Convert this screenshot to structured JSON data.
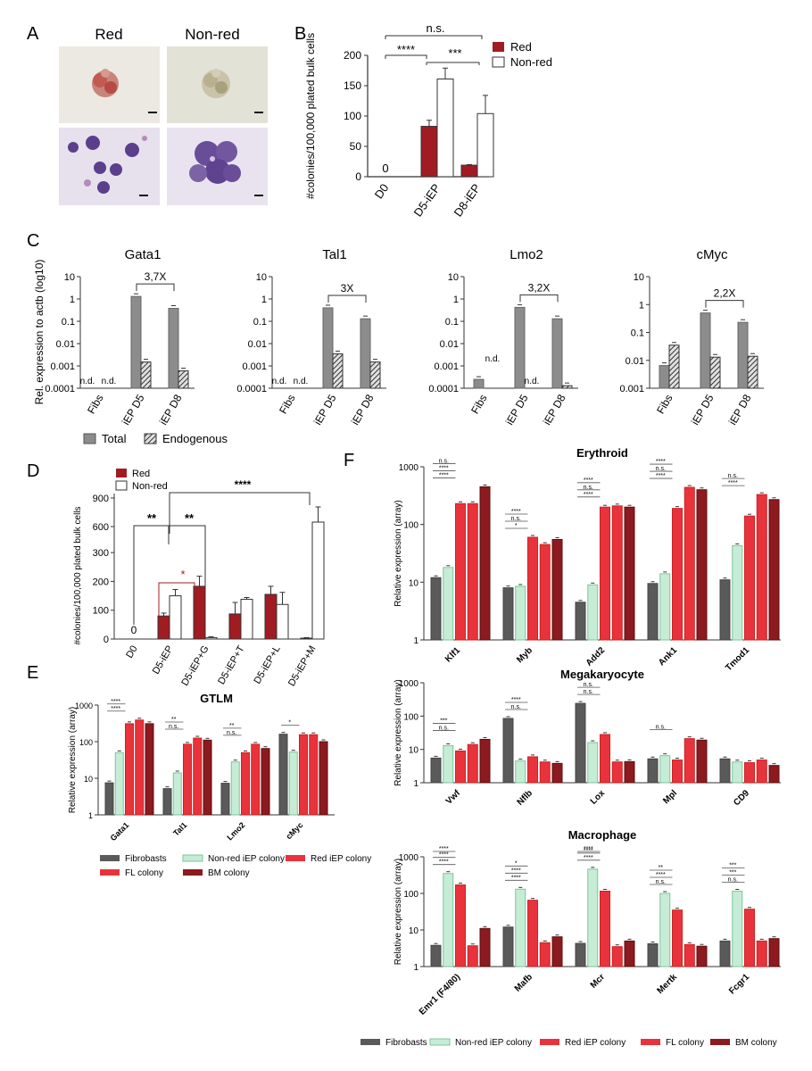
{
  "colors": {
    "red": "#a01c22",
    "gray": "#8c8c8c",
    "fib": "#5a5a5a",
    "mint": "#c6ecd6",
    "brightred": "#e8333c",
    "darkred": "#8c1a1f",
    "axis": "#333333"
  },
  "panel_labels": [
    "A",
    "B",
    "C",
    "D",
    "E",
    "F"
  ],
  "panelA": {
    "col_titles": [
      "Red",
      "Non-red"
    ]
  },
  "chart_data": [
    {
      "id": "B",
      "type": "bar",
      "categories": [
        "D0",
        "D5-iEP",
        "D8-iEP"
      ],
      "series": [
        {
          "name": "Red",
          "values": [
            0,
            83,
            19
          ],
          "errors": [
            0,
            10,
            1
          ]
        },
        {
          "name": "Non-red",
          "values": [
            null,
            161,
            104
          ],
          "errors": [
            0,
            18,
            30
          ]
        }
      ],
      "ylabel": "#colonies/100,000 plated bulk cells",
      "yticks": [
        "0",
        "50",
        "100",
        "150",
        "200"
      ],
      "ylim": [
        0,
        200
      ],
      "zero_label": "0",
      "sig": [
        "n.s.",
        "****",
        "***"
      ]
    },
    {
      "id": "C",
      "type": "bar",
      "scale": "log",
      "ylabel": "Rel. expression to actb (log10)",
      "categories": [
        "Fibs",
        "iEP D5",
        "iEP D8"
      ],
      "legend": [
        "Total",
        "Endogenous"
      ],
      "nd": "n.d.",
      "panels": [
        {
          "gene": "Gata1",
          "fold": "3,7X",
          "ymin": -4,
          "ymax": 1,
          "yticks": [
            "0.0001",
            "0.001",
            "0.01",
            "0.1",
            "1",
            "10"
          ],
          "total": [
            null,
            1.3,
            0.38
          ],
          "endogenous": [
            null,
            0.0015,
            0.0006
          ]
        },
        {
          "gene": "Tal1",
          "fold": "3X",
          "ymin": -4,
          "ymax": 1,
          "yticks": [
            "0.0001",
            "0.001",
            "0.01",
            "0.1",
            "1",
            "10"
          ],
          "total": [
            null,
            0.4,
            0.13
          ],
          "endogenous": [
            null,
            0.0035,
            0.0015
          ]
        },
        {
          "gene": "Lmo2",
          "fold": "3,2X",
          "ymin": -4,
          "ymax": 1,
          "yticks": [
            "0.0001",
            "0.001",
            "0.01",
            "0.1",
            "1",
            "10"
          ],
          "total": [
            0.00025,
            0.42,
            0.13
          ],
          "endogenous": [
            null,
            null,
            0.00013
          ]
        },
        {
          "gene": "cMyc",
          "fold": "2,2X",
          "ymin": -3,
          "ymax": 1,
          "yticks": [
            "0.001",
            "0.01",
            "0.1",
            "1",
            "10"
          ],
          "total": [
            0.0065,
            0.5,
            0.23
          ],
          "endogenous": [
            0.035,
            0.013,
            0.014
          ]
        }
      ]
    },
    {
      "id": "D",
      "type": "bar",
      "categories": [
        "D0",
        "D5-iEP",
        "D5-iEP+G",
        "D5-iEP+T",
        "D5-iEP+L",
        "D5-iEP+M"
      ],
      "series": [
        {
          "name": "Red",
          "values": [
            0,
            80,
            183,
            87,
            155,
            3
          ],
          "errors": [
            0,
            10,
            35,
            40,
            28,
            2
          ]
        },
        {
          "name": "Non-red",
          "values": [
            null,
            150,
            5,
            138,
            120,
            620
          ],
          "errors": [
            0,
            22,
            3,
            6,
            42,
            190
          ]
        }
      ],
      "ylabel": "#colonies/100,000 plated bulk cells",
      "yticks_low": [
        "0",
        "100",
        "200",
        "300"
      ],
      "yticks_high": [
        "600",
        "900"
      ],
      "zero_label": "0",
      "sig": [
        "**",
        "*",
        "**",
        "****"
      ]
    },
    {
      "id": "E",
      "type": "bar",
      "scale": "log",
      "title": "GTLM",
      "ylabel": "Relative expression (array)",
      "ymin": 0,
      "ymax": 3,
      "yticks": [
        "1",
        "10",
        "100",
        "1000"
      ],
      "categories": [
        "Gata1",
        "Tal1",
        "Lmo2",
        "cMyc"
      ],
      "values": [
        [
          7.5,
          50,
          310,
          390,
          310
        ],
        [
          5.2,
          14,
          85,
          125,
          110
        ],
        [
          7.3,
          28,
          50,
          85,
          65
        ],
        [
          160,
          52,
          155,
          155,
          100
        ]
      ],
      "sig": [
        "****",
        "****",
        "n.s.",
        "**",
        "n.s.",
        "**",
        "*"
      ]
    },
    {
      "id": "F-Erythroid",
      "type": "bar",
      "scale": "log",
      "title": "Erythroid",
      "ylabel": "Relative expression (array)",
      "ymin": 0,
      "ymax": 3,
      "yticks": [
        "1",
        "10",
        "100",
        "1000"
      ],
      "categories": [
        "Klf1",
        "Myb",
        "Add2",
        "Ank1",
        "Tmod1"
      ],
      "values": [
        [
          12,
          18,
          230,
          230,
          450
        ],
        [
          8,
          8.5,
          60,
          45,
          55
        ],
        [
          4.5,
          9,
          200,
          210,
          200
        ],
        [
          9.5,
          14,
          190,
          440,
          400
        ],
        [
          11,
          43,
          140,
          330,
          270
        ]
      ],
      "sig": [
        "****",
        "****",
        "n.s.",
        "*",
        "n.s.",
        "****",
        "****",
        "n.s.",
        "****",
        "****",
        "n.s.",
        "****",
        "****",
        "n.s."
      ]
    },
    {
      "id": "F-Megakaryocyte",
      "type": "bar",
      "scale": "log",
      "title": "Megakaryocyte",
      "ylabel": "Relative expression (array)",
      "ymin": 0,
      "ymax": 3,
      "yticks": [
        "1",
        "10",
        "100",
        "1000"
      ],
      "categories": [
        "Vwf",
        "Nflb",
        "Lox",
        "Mpl",
        "CD9"
      ],
      "values": [
        [
          5.5,
          13,
          9,
          14,
          20
        ],
        [
          85,
          4.5,
          6,
          4.2,
          3.8
        ],
        [
          240,
          16,
          28,
          4.2,
          4.3
        ],
        [
          5.2,
          6.5,
          4.8,
          21,
          19
        ],
        [
          5.2,
          4.2,
          4,
          4.8,
          3.3
        ]
      ],
      "sig": [
        "n.s.",
        "***",
        "n.s.",
        "****",
        "n.s.",
        "n.s.",
        "n.s."
      ]
    },
    {
      "id": "F-Macrophage",
      "type": "bar",
      "scale": "log",
      "title": "Macrophage",
      "ylabel": "Relative expression (array)",
      "ymin": 0,
      "ymax": 3,
      "yticks": [
        "1",
        "10",
        "100",
        "1000"
      ],
      "categories": [
        "Emr1 (F4/80)",
        "Mafb",
        "Mcr",
        "Mertk",
        "Fcgr1"
      ],
      "values": [
        [
          3.8,
          350,
          170,
          3.7,
          11
        ],
        [
          12,
          130,
          65,
          4.5,
          6.5
        ],
        [
          4.3,
          460,
          115,
          3.5,
          5
        ],
        [
          4.2,
          100,
          35,
          4,
          3.6
        ],
        [
          5,
          115,
          37,
          5,
          5.8
        ]
      ],
      "sig": [
        "****",
        "****",
        "****",
        "****",
        "****",
        "*",
        "****",
        "****",
        "****",
        "n.s.",
        "****",
        "**",
        "n.s.",
        "***",
        "***"
      ]
    }
  ],
  "legend_EF": [
    "Fibrobasts",
    "Non-red iEP colony",
    "Red iEP colony",
    "FL colony",
    "BM colony"
  ]
}
